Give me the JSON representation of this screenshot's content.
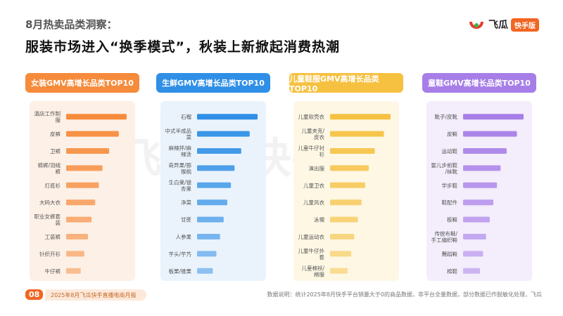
{
  "header": {
    "section_title": "8月热卖品类洞察：",
    "headline": "服装市场进入“换季模式”，秋装上新掀起消费热潮"
  },
  "logo": {
    "name": "飞瓜",
    "badge": "快手版"
  },
  "watermark": "飞瓜 | 快手版",
  "colors": {
    "orange": "#f68b3c",
    "blue": "#2f8fe6",
    "yellow": "#f6c141",
    "purple": "#a77ee8",
    "topbar": "#f26522"
  },
  "chart_data": [
    {
      "type": "bar",
      "orientation": "horizontal",
      "title": "女装GMV高增长品类TOP10",
      "color": "#f68b3c",
      "categories": [
        "酒店工作制服",
        "皮裤",
        "卫裤",
        "棉裤/羽绒裤",
        "打底衫",
        "大码大衣",
        "职业女裤套装",
        "工装裤",
        "针织开衫",
        "牛仔裤"
      ],
      "values": [
        100,
        87,
        71,
        60,
        54,
        48,
        42,
        36,
        30,
        24
      ],
      "value_unit": "relative (no axis printed)"
    },
    {
      "type": "bar",
      "orientation": "horizontal",
      "title": "生鲜GMV高增长品类TOP10",
      "color": "#2f8fe6",
      "categories": [
        "石榴",
        "中式半成品菜",
        "麻辣拌/麻辣烫",
        "奇异果/猕猴桃",
        "生白果/银杏果",
        "净菜",
        "甘蔗",
        "人参果",
        "芋头/芋艿",
        "板栗/锥栗"
      ],
      "values": [
        100,
        87,
        73,
        62,
        56,
        50,
        44,
        38,
        32,
        26
      ],
      "value_unit": "relative (no axis printed)"
    },
    {
      "type": "bar",
      "orientation": "horizontal",
      "title": "儿童鞋服GMV高增长品类TOP10",
      "color": "#f6c141",
      "categories": [
        "儿童软壳衣",
        "儿童夹克/皮衣",
        "儿童牛仔衬衫",
        "演出服",
        "儿童卫衣",
        "儿童风衣",
        "泳帽",
        "儿童运动衣",
        "儿童牛仔外套",
        "儿童棉袄/棉服"
      ],
      "values": [
        100,
        89,
        74,
        64,
        58,
        52,
        46,
        40,
        35,
        29
      ],
      "value_unit": "relative (no axis printed)"
    },
    {
      "type": "bar",
      "orientation": "horizontal",
      "title": "童鞋GMV高增长品类TOP10",
      "color": "#a77ee8",
      "categories": [
        "靴子/皮靴",
        "皮鞋",
        "运动鞋",
        "婴儿步前鞋/袜靴",
        "学步鞋",
        "鞋配件",
        "板鞋",
        "传统布鞋/手工编织鞋",
        "舞蹈鞋",
        "棉鞋"
      ],
      "values": [
        100,
        89,
        72,
        62,
        56,
        50,
        44,
        38,
        33,
        28
      ],
      "value_unit": "relative (no axis printed)"
    }
  ],
  "footer": {
    "page_number": "08",
    "report_title": "2025年8月飞瓜快手直播电商月报",
    "note": "数据说明：统计2025年8月快手平台销量大于0的商品数据，非平台全量数据，部分数据已作脱敏化处理，飞瓜"
  }
}
